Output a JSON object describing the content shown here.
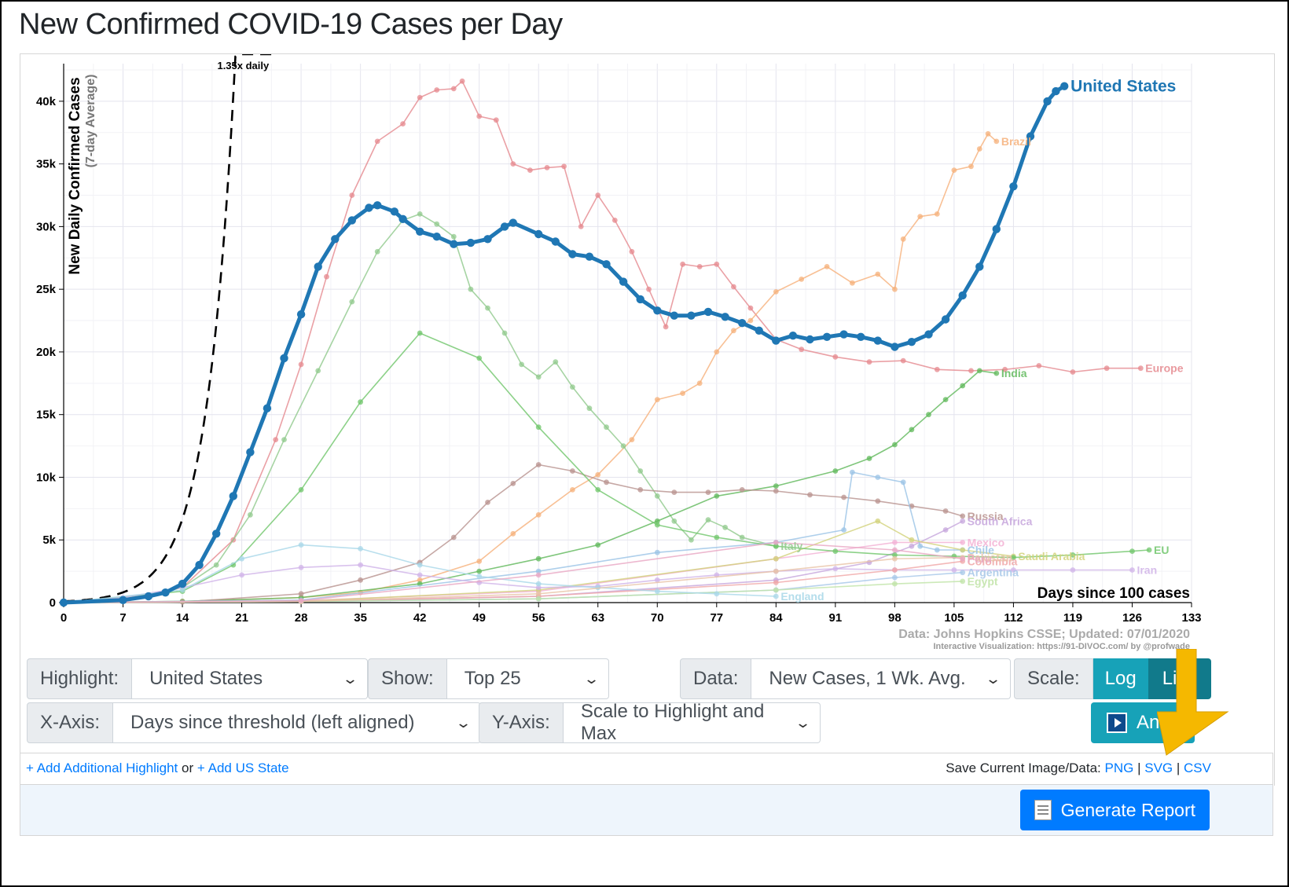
{
  "page_title": "New Confirmed COVID-19 Cases per Day",
  "colors": {
    "highlight": "#1f77b4",
    "accent_teal": "#17a2b8",
    "accent_teal_dark": "#117a8b",
    "primary_blue": "#007bff",
    "annotation_arrow": "#f5b800"
  },
  "controls": {
    "highlight_label": "Highlight:",
    "highlight_value": "United States",
    "show_label": "Show:",
    "show_value": "Top 25",
    "data_label": "Data:",
    "data_value": "New Cases, 1 Wk. Avg.",
    "scale_label": "Scale:",
    "scale_log": "Log",
    "scale_linear": "Lin",
    "xaxis_label": "X-Axis:",
    "xaxis_value": "Days since threshold (left aligned)",
    "yaxis_label": "Y-Axis:",
    "yaxis_value": "Scale to Highlight and Max",
    "animate_label": "Anim"
  },
  "links": {
    "add_highlight": "+ Add Additional Highlight",
    "or_text": "or",
    "add_us_state": "+ Add US State",
    "save_label": "Save Current Image/Data:",
    "png": "PNG",
    "svg": "SVG",
    "csv": "CSV",
    "sep": "|"
  },
  "report_button": "Generate Report",
  "icons": {
    "play": "play-icon",
    "memo": "memo-icon",
    "arrow": "arrow-down-left-icon",
    "chevron": "chevron-down-icon"
  },
  "chart_data": {
    "type": "line",
    "ylabel": "New Daily Confirmed Cases",
    "ylabel_sub": "(7-day Average)",
    "xlabel": "Days since 100 cases",
    "xlim": [
      0,
      133
    ],
    "ylim": [
      0,
      43000
    ],
    "xticks": [
      0,
      7,
      14,
      21,
      28,
      35,
      42,
      49,
      56,
      63,
      70,
      77,
      84,
      91,
      98,
      105,
      112,
      119,
      126,
      133
    ],
    "yticks": [
      0,
      5000,
      10000,
      15000,
      20000,
      25000,
      30000,
      35000,
      40000
    ],
    "ytick_labels": [
      "0",
      "5k",
      "10k",
      "15k",
      "20k",
      "25k",
      "30k",
      "35k",
      "40k"
    ],
    "grid": true,
    "source": "Data: Johns Hopkins CSSE; Updated: 07/01/2020",
    "credit": "Interactive Visualization: https://91-DIVOC.com/ by @profwade",
    "reference_line": {
      "label": "1.35x daily",
      "x": [
        0,
        10,
        12,
        14,
        16,
        18,
        20,
        21,
        22,
        23,
        24.4
      ],
      "y": [
        100,
        2000,
        3640,
        6600,
        12050,
        21900,
        40000,
        43000,
        43000,
        43000,
        43000
      ]
    },
    "series": [
      {
        "name": "United States",
        "color": "#1f77b4",
        "highlight": true,
        "x": [
          0,
          7,
          10,
          12,
          14,
          16,
          18,
          20,
          22,
          24,
          26,
          28,
          30,
          32,
          34,
          36,
          37,
          39,
          40,
          42,
          44,
          46,
          48,
          50,
          52,
          53,
          56,
          58,
          60,
          62,
          64,
          66,
          68,
          70,
          72,
          74,
          76,
          78,
          80,
          82,
          84,
          86,
          88,
          90,
          92,
          94,
          96,
          98,
          100,
          102,
          104,
          106,
          108,
          110,
          112,
          114,
          116,
          117,
          118
        ],
        "y": [
          0,
          200,
          500,
          800,
          1500,
          3000,
          5500,
          8500,
          12000,
          15500,
          19500,
          23000,
          26800,
          29000,
          30500,
          31500,
          31700,
          31200,
          30600,
          29600,
          29200,
          28600,
          28700,
          29000,
          30000,
          30300,
          29400,
          28800,
          27800,
          27600,
          27000,
          25600,
          24200,
          23300,
          22900,
          22900,
          23200,
          22800,
          22300,
          21700,
          20900,
          21300,
          21000,
          21200,
          21400,
          21200,
          20900,
          20400,
          20800,
          21400,
          22600,
          24500,
          26800,
          29800,
          33200,
          37200,
          40000,
          40800,
          41200
        ]
      },
      {
        "name": "Europe",
        "color": "#e5888e",
        "x": [
          0,
          7,
          14,
          20,
          25,
          28,
          31,
          34,
          37,
          40,
          42,
          44,
          46,
          47,
          49,
          51,
          53,
          55,
          57,
          59,
          61,
          63,
          65,
          67,
          69,
          71,
          73,
          75,
          77,
          79,
          81,
          84,
          87,
          91,
          95,
          99,
          103,
          107,
          111,
          115,
          119,
          123,
          127
        ],
        "y": [
          0,
          200,
          1200,
          5000,
          13000,
          19000,
          26000,
          32500,
          36800,
          38200,
          40300,
          40900,
          41000,
          41600,
          38800,
          38500,
          35000,
          34500,
          34700,
          34800,
          30000,
          32500,
          30500,
          28000,
          25000,
          22000,
          27000,
          26800,
          27000,
          25200,
          23500,
          21000,
          20200,
          19600,
          19200,
          19300,
          18600,
          18500,
          18600,
          18900,
          18400,
          18700,
          18700
        ]
      },
      {
        "name": "Brazil",
        "color": "#f6b07a",
        "x": [
          0,
          14,
          28,
          35,
          42,
          49,
          53,
          56,
          60,
          63,
          67,
          70,
          73,
          75,
          77,
          79,
          81,
          84,
          87,
          90,
          93,
          96,
          98,
          99,
          101,
          103,
          105,
          107,
          108,
          109,
          110
        ],
        "y": [
          0,
          100,
          400,
          800,
          1800,
          3300,
          5500,
          7000,
          9000,
          10200,
          13000,
          16200,
          16700,
          17500,
          20000,
          21700,
          22500,
          24800,
          25800,
          26800,
          25500,
          26200,
          25000,
          29000,
          30800,
          31000,
          34500,
          34800,
          36200,
          37400,
          36800
        ]
      },
      {
        "name": "Italy",
        "color": "#90c98c",
        "x": [
          0,
          7,
          14,
          18,
          22,
          26,
          30,
          34,
          37,
          40,
          42,
          44,
          46,
          48,
          50,
          52,
          54,
          56,
          58,
          60,
          62,
          64,
          66,
          68,
          70,
          72,
          74,
          76,
          78,
          80,
          84
        ],
        "y": [
          0,
          100,
          1200,
          3000,
          7000,
          13000,
          18500,
          24000,
          28000,
          30500,
          31000,
          30200,
          29200,
          25000,
          23500,
          21500,
          19000,
          18000,
          19200,
          17200,
          15500,
          14000,
          12500,
          10500,
          8500,
          6500,
          5000,
          6600,
          6000,
          5200,
          4500
        ]
      },
      {
        "name": "India",
        "color": "#5fb85a",
        "x": [
          0,
          14,
          28,
          42,
          49,
          56,
          63,
          70,
          77,
          84,
          91,
          95,
          98,
          100,
          102,
          104,
          106,
          108,
          110
        ],
        "y": [
          0,
          100,
          400,
          1500,
          2500,
          3500,
          4600,
          6500,
          8500,
          9300,
          10500,
          11500,
          12600,
          13800,
          15000,
          16200,
          17300,
          18500,
          18300
        ]
      },
      {
        "name": "Russia",
        "color": "#b8928e",
        "x": [
          0,
          14,
          28,
          35,
          42,
          46,
          50,
          53,
          56,
          60,
          64,
          68,
          72,
          76,
          80,
          84,
          88,
          92,
          96,
          100,
          104,
          106
        ],
        "y": [
          0,
          50,
          700,
          1800,
          3200,
          5200,
          8000,
          9500,
          11000,
          10500,
          9600,
          9000,
          8800,
          8800,
          9000,
          8900,
          8600,
          8400,
          8100,
          7700,
          7300,
          6900
        ]
      },
      {
        "name": "South Africa",
        "color": "#c6a5dc",
        "x": [
          0,
          28,
          56,
          84,
          95,
          100,
          104,
          106
        ],
        "y": [
          0,
          100,
          500,
          1800,
          3200,
          4500,
          5800,
          6500
        ]
      },
      {
        "name": "Mexico",
        "color": "#f3b0d4",
        "x": [
          0,
          28,
          56,
          84,
          98,
          106
        ],
        "y": [
          0,
          150,
          900,
          3500,
          4800,
          4800
        ]
      },
      {
        "name": "Chile",
        "color": "#9ac3e6",
        "x": [
          0,
          28,
          56,
          70,
          84,
          92,
          93,
          96,
          99,
          101,
          103,
          106
        ],
        "y": [
          0,
          200,
          2500,
          4000,
          4800,
          5800,
          10400,
          10000,
          9600,
          4500,
          4200,
          4200
        ]
      },
      {
        "name": "Saudi Arabia",
        "color": "#d2d27a",
        "x": [
          0,
          28,
          56,
          84,
          96,
          100,
          106,
          112
        ],
        "y": [
          0,
          100,
          1000,
          3500,
          6500,
          5000,
          4200,
          3700
        ]
      },
      {
        "name": "EU",
        "color": "#6fc56a",
        "x": [
          0,
          14,
          20,
          28,
          35,
          42,
          49,
          56,
          63,
          70,
          77,
          84,
          91,
          98,
          105,
          112,
          119,
          126,
          128
        ],
        "y": [
          0,
          900,
          3000,
          9000,
          16000,
          21500,
          19500,
          14000,
          9000,
          6200,
          5200,
          4500,
          4100,
          3800,
          3700,
          3600,
          3800,
          4100,
          4200
        ]
      },
      {
        "name": "Iran",
        "color": "#d0b3e8",
        "x": [
          0,
          7,
          14,
          21,
          28,
          35,
          42,
          49,
          56,
          63,
          70,
          77,
          84,
          91,
          98,
          105,
          112,
          119,
          126
        ],
        "y": [
          0,
          400,
          1200,
          2200,
          2800,
          3000,
          2200,
          1600,
          1200,
          1300,
          1800,
          2200,
          2500,
          2700,
          2600,
          2600,
          2600,
          2600,
          2600
        ]
      },
      {
        "name": "Colombia",
        "color": "#f0a6a6",
        "x": [
          0,
          28,
          56,
          84,
          98,
          106
        ],
        "y": [
          0,
          100,
          500,
          1600,
          2600,
          3300
        ]
      },
      {
        "name": "Argentina",
        "color": "#a6c7e8",
        "x": [
          0,
          28,
          56,
          84,
          98,
          106
        ],
        "y": [
          0,
          80,
          300,
          1000,
          2000,
          2400
        ]
      },
      {
        "name": "Egypt",
        "color": "#bfe3a6",
        "x": [
          0,
          28,
          56,
          84,
          98,
          106
        ],
        "y": [
          0,
          80,
          300,
          1000,
          1500,
          1700
        ]
      },
      {
        "name": "England",
        "color": "#a7d7e8",
        "x": [
          0,
          14,
          21,
          28,
          35,
          42,
          49,
          56,
          63,
          70,
          77,
          84
        ],
        "y": [
          0,
          1000,
          3500,
          4600,
          4300,
          3000,
          2100,
          1500,
          1200,
          900,
          700,
          500
        ]
      },
      {
        "name": "Pakistan",
        "color": "#e8c3a6",
        "x": [
          0,
          28,
          56,
          84,
          98,
          106
        ],
        "y": [
          0,
          80,
          700,
          2500,
          3500,
          3600
        ]
      },
      {
        "name": "Peru",
        "color": "#e8a6c3",
        "x": [
          0,
          28,
          56,
          84,
          98,
          106
        ],
        "y": [
          0,
          150,
          2200,
          4800,
          4200,
          3500
        ]
      }
    ]
  }
}
